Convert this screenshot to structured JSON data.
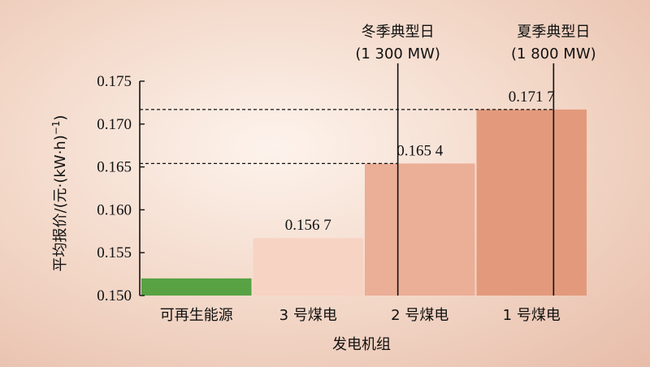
{
  "chart_data": {
    "type": "bar",
    "xlabel": "发电机组",
    "ylabel": "平均报价/(元·(kW·h)",
    "ylabel_sup": "−1",
    "ylabel_close": ")",
    "ylim": [
      0.15,
      0.175
    ],
    "yticks": [
      {
        "value": 0.15,
        "label": "0.150"
      },
      {
        "value": 0.155,
        "label": "0.155"
      },
      {
        "value": 0.16,
        "label": "0.160"
      },
      {
        "value": 0.165,
        "label": "0.165"
      },
      {
        "value": 0.17,
        "label": "0.170"
      },
      {
        "value": 0.175,
        "label": "0.175"
      }
    ],
    "categories": [
      "可再生能源",
      "3 号煤电",
      "2 号煤电",
      "1 号煤电"
    ],
    "values": [
      0.152,
      0.1567,
      0.1654,
      0.1717
    ],
    "value_labels": [
      "",
      "0.156 7",
      "0.165 4",
      "0.171 7"
    ],
    "bar_colors": [
      "#58a244",
      "#f7d3c4",
      "#ebae96",
      "#e39a7c"
    ],
    "reference_lines": [
      {
        "label": "冬季典型日",
        "sublabel": "(1 300 MW)",
        "category_index": 2,
        "position_fraction": 0.3,
        "dashed_at": 0.1654
      },
      {
        "label": "夏季典型日",
        "sublabel": "(1 800 MW)",
        "category_index": 3,
        "position_fraction": 0.7,
        "dashed_at": 0.1717
      }
    ],
    "grid": false,
    "legend": "none"
  }
}
